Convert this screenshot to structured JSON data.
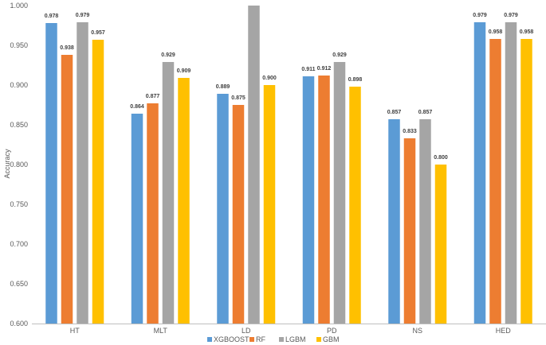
{
  "chart_data": {
    "type": "bar",
    "ylabel": "Accuracy",
    "ylim": [
      0.6,
      1.0
    ],
    "yticks": [
      "0.600",
      "0.650",
      "0.700",
      "0.750",
      "0.800",
      "0.850",
      "0.900",
      "0.950",
      "1.000"
    ],
    "grid": false,
    "legend_position": "bottom",
    "categories": [
      "HT",
      "MLT",
      "LD",
      "PD",
      "NS",
      "HED"
    ],
    "series": [
      {
        "name": "XGBOOST",
        "color": "#5B9BD5",
        "values": [
          0.978,
          0.864,
          0.889,
          0.911,
          0.857,
          0.979
        ],
        "labels": [
          "0.978",
          "0.864",
          "0.889",
          "0.911",
          "0.857",
          "0.979"
        ]
      },
      {
        "name": "RF",
        "color": "#ED7D31",
        "values": [
          0.938,
          0.877,
          0.875,
          0.912,
          0.833,
          0.958
        ],
        "labels": [
          "0.938",
          "0.877",
          "0.875",
          "0.912",
          "0.833",
          "0.958"
        ]
      },
      {
        "name": "LGBM",
        "color": "#A5A5A5",
        "values": [
          0.979,
          0.929,
          1.0,
          0.929,
          0.857,
          0.979
        ],
        "labels": [
          "0.979",
          "0.929",
          "1.000",
          "0.929",
          "0.857",
          "0.979"
        ]
      },
      {
        "name": "GBM",
        "color": "#FFC000",
        "values": [
          0.957,
          0.909,
          0.9,
          0.898,
          0.8,
          0.958
        ],
        "labels": [
          "0.957",
          "0.909",
          "0.900",
          "0.898",
          "0.800",
          "0.958"
        ]
      }
    ]
  }
}
